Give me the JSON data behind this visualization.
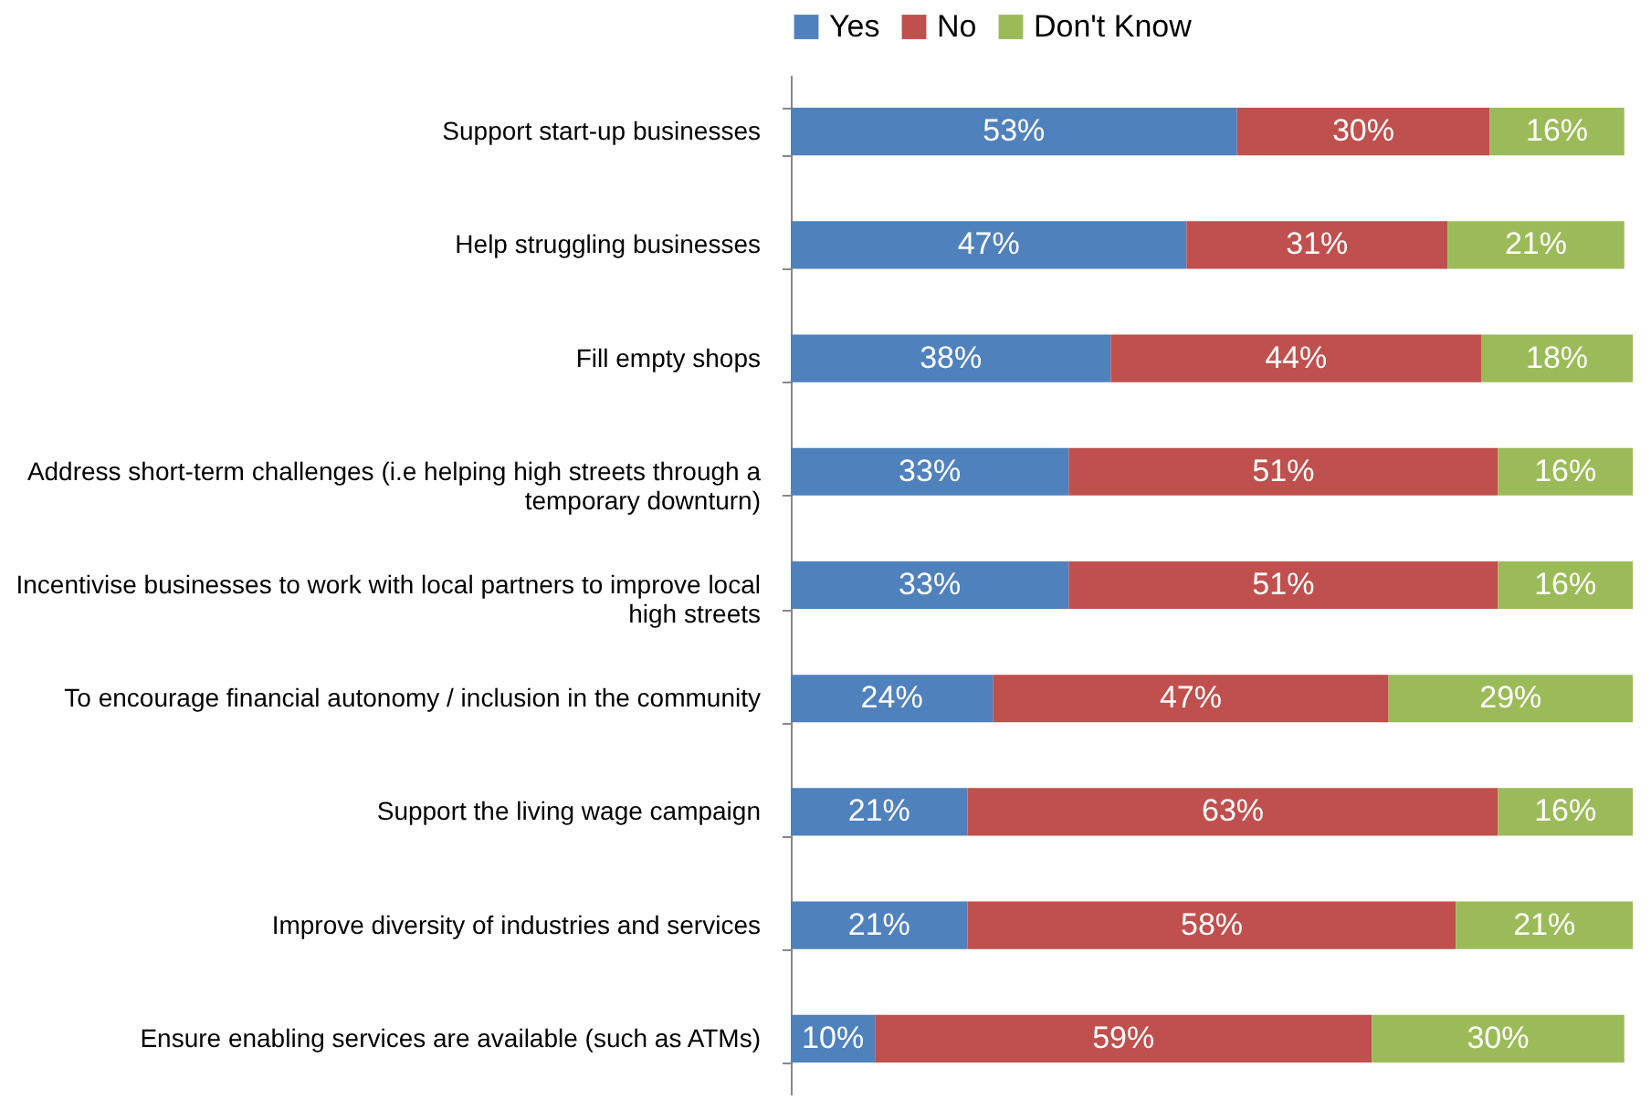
{
  "chart_data": {
    "type": "bar",
    "orientation": "horizontal",
    "stacked": true,
    "legend": "top",
    "categories": [
      "Support start-up businesses",
      "Help struggling businesses",
      "Fill empty shops",
      "Address short-term challenges (i.e helping high streets through a temporary downturn)",
      "Incentivise businesses to work with local partners to improve local high streets",
      "To encourage financial autonomy / inclusion in the community",
      "Support the living wage campaign",
      "Improve diversity of industries and services",
      "Ensure enabling services are available (such as ATMs)"
    ],
    "series": [
      {
        "name": "Yes",
        "color": "#4f81bd",
        "values": [
          53,
          47,
          38,
          33,
          33,
          24,
          21,
          21,
          10
        ],
        "value_labels": [
          "53%",
          "47%",
          "38%",
          "33%",
          "33%",
          "24%",
          "21%",
          "21%",
          "10%"
        ]
      },
      {
        "name": "No",
        "color": "#c0504d",
        "values": [
          30,
          31,
          44,
          51,
          51,
          47,
          63,
          58,
          59
        ],
        "value_labels": [
          "30%",
          "31%",
          "44%",
          "51%",
          "51%",
          "47%",
          "63%",
          "58%",
          "59%"
        ]
      },
      {
        "name": "Don't Know",
        "color": "#9bbb59",
        "values": [
          16,
          21,
          18,
          16,
          16,
          29,
          16,
          21,
          30
        ],
        "value_labels": [
          "16%",
          "21%",
          "18%",
          "16%",
          "16%",
          "29%",
          "16%",
          "21%",
          "30%"
        ]
      }
    ]
  }
}
